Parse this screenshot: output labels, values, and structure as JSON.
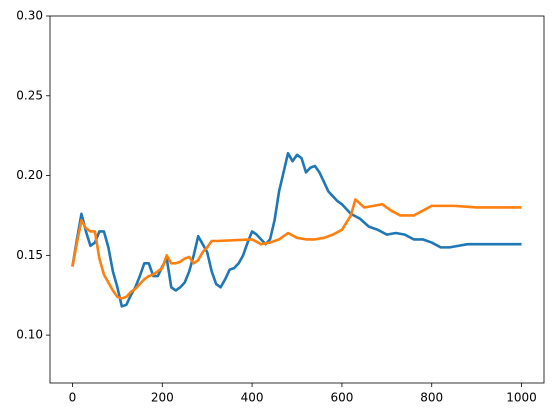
{
  "chart_data": {
    "type": "line",
    "xlim": [
      -50,
      1050
    ],
    "ylim": [
      0.07,
      0.3
    ],
    "xticks": [
      0,
      200,
      400,
      600,
      800,
      1000
    ],
    "yticks": [
      {
        "value": 0.1,
        "label": "0.10"
      },
      {
        "value": 0.15,
        "label": "0.15"
      },
      {
        "value": 0.2,
        "label": "0.20"
      },
      {
        "value": 0.25,
        "label": "0.25"
      },
      {
        "value": 0.3,
        "label": "0.30"
      }
    ],
    "grid": false,
    "series": [
      {
        "color": "#1f77b4",
        "x": [
          0,
          10,
          20,
          30,
          40,
          50,
          60,
          70,
          80,
          90,
          100,
          110,
          120,
          130,
          140,
          150,
          160,
          170,
          180,
          190,
          200,
          210,
          220,
          230,
          240,
          250,
          260,
          270,
          280,
          290,
          300,
          310,
          320,
          330,
          340,
          350,
          360,
          370,
          380,
          390,
          400,
          410,
          420,
          430,
          440,
          450,
          460,
          470,
          480,
          490,
          500,
          510,
          520,
          530,
          540,
          550,
          560,
          570,
          580,
          590,
          600,
          620,
          640,
          660,
          680,
          700,
          720,
          740,
          760,
          780,
          800,
          820,
          840,
          860,
          880,
          900,
          950,
          1000
        ],
        "values": [
          0.143,
          0.16,
          0.176,
          0.165,
          0.156,
          0.158,
          0.165,
          0.165,
          0.155,
          0.14,
          0.13,
          0.118,
          0.119,
          0.125,
          0.13,
          0.137,
          0.145,
          0.145,
          0.137,
          0.137,
          0.143,
          0.148,
          0.13,
          0.128,
          0.13,
          0.133,
          0.14,
          0.15,
          0.162,
          0.157,
          0.152,
          0.14,
          0.132,
          0.13,
          0.135,
          0.141,
          0.142,
          0.145,
          0.15,
          0.158,
          0.165,
          0.163,
          0.16,
          0.157,
          0.16,
          0.172,
          0.19,
          0.202,
          0.214,
          0.209,
          0.213,
          0.211,
          0.202,
          0.205,
          0.206,
          0.202,
          0.196,
          0.19,
          0.187,
          0.184,
          0.182,
          0.176,
          0.173,
          0.168,
          0.166,
          0.163,
          0.164,
          0.163,
          0.16,
          0.16,
          0.158,
          0.155,
          0.155,
          0.156,
          0.157,
          0.157,
          0.157,
          0.157
        ]
      },
      {
        "color": "#ff7f0e",
        "x": [
          0,
          10,
          20,
          30,
          40,
          50,
          60,
          70,
          80,
          90,
          100,
          110,
          120,
          130,
          140,
          150,
          160,
          170,
          180,
          190,
          200,
          210,
          220,
          230,
          240,
          250,
          260,
          270,
          280,
          290,
          300,
          310,
          320,
          400,
          420,
          440,
          460,
          480,
          500,
          520,
          540,
          560,
          580,
          600,
          620,
          630,
          650,
          670,
          690,
          710,
          730,
          760,
          780,
          800,
          850,
          900,
          1000
        ],
        "values": [
          0.143,
          0.158,
          0.172,
          0.167,
          0.165,
          0.165,
          0.148,
          0.138,
          0.133,
          0.128,
          0.124,
          0.123,
          0.124,
          0.127,
          0.129,
          0.132,
          0.135,
          0.137,
          0.138,
          0.14,
          0.142,
          0.15,
          0.145,
          0.145,
          0.146,
          0.148,
          0.149,
          0.145,
          0.147,
          0.152,
          0.155,
          0.159,
          0.159,
          0.16,
          0.157,
          0.158,
          0.16,
          0.164,
          0.161,
          0.16,
          0.16,
          0.161,
          0.163,
          0.166,
          0.175,
          0.185,
          0.18,
          0.181,
          0.182,
          0.178,
          0.175,
          0.175,
          0.178,
          0.181,
          0.181,
          0.18,
          0.18
        ]
      }
    ]
  }
}
